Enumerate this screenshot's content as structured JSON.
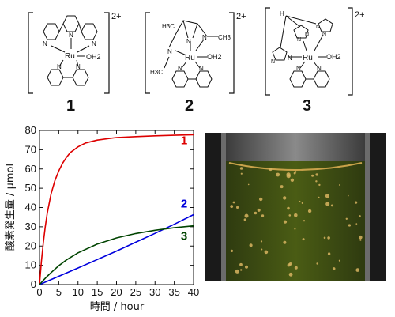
{
  "complexes": [
    {
      "label": "1",
      "charge": "2+",
      "color": "#cc0000",
      "atoms": {
        "ru": "Ru",
        "oh2": "OH2",
        "n1": "N",
        "n2": "N",
        "n3": "N",
        "n4": "N",
        "n5": "N"
      }
    },
    {
      "label": "2",
      "charge": "2+",
      "color": "#0000cc",
      "atoms": {
        "ru": "Ru",
        "oh2": "OH2",
        "h3c1": "H3C",
        "h3c2": "H3C",
        "ch3": "CH3",
        "n1": "N",
        "n2": "N",
        "n3": "N",
        "n4": "N",
        "n5": "N"
      }
    },
    {
      "label": "3",
      "charge": "2+",
      "color": "#006600",
      "atoms": {
        "ru": "Ru",
        "oh2": "OH2",
        "hc": "H",
        "n1": "N",
        "n2": "N",
        "n3": "N",
        "n4": "N",
        "n5": "N",
        "n6": "N",
        "n7": "N",
        "n8": "N"
      }
    }
  ],
  "chart_data": {
    "type": "line",
    "xlabel": "時間 / hour",
    "ylabel": "酸素発生量 / μmol",
    "xlim": [
      0,
      40
    ],
    "ylim": [
      0,
      80
    ],
    "xticks": [
      "0",
      "5",
      "10",
      "15",
      "20",
      "25",
      "30",
      "35",
      "40"
    ],
    "yticks": [
      "0",
      "10",
      "20",
      "30",
      "40",
      "50",
      "60",
      "70",
      "80"
    ],
    "grid": false,
    "series": [
      {
        "name": "1",
        "color": "#dd0000",
        "x": [
          0,
          0.5,
          1,
          1.5,
          2,
          3,
          4,
          5,
          6,
          7,
          8,
          10,
          12,
          15,
          18,
          20,
          25,
          30,
          35,
          40
        ],
        "y": [
          0,
          12,
          22,
          30,
          37,
          47,
          54,
          59,
          63,
          66,
          68.5,
          71.5,
          73.5,
          75,
          75.8,
          76.3,
          76.8,
          77.2,
          77.5,
          77.8
        ]
      },
      {
        "name": "2",
        "color": "#0000dd",
        "x": [
          0,
          5,
          10,
          15,
          20,
          25,
          30,
          35,
          40
        ],
        "y": [
          0,
          4.3,
          8.6,
          13,
          17.4,
          22,
          26.6,
          31.3,
          36.3
        ]
      },
      {
        "name": "3",
        "color": "#004400",
        "x": [
          0,
          1,
          2,
          3,
          5,
          7,
          10,
          15,
          20,
          25,
          30,
          35,
          40
        ],
        "y": [
          0,
          2.2,
          4.3,
          6.2,
          9.8,
          12.8,
          16.5,
          21,
          24.2,
          26.5,
          28.2,
          29.5,
          30.5
        ]
      }
    ]
  },
  "photo": {
    "description": ""
  }
}
